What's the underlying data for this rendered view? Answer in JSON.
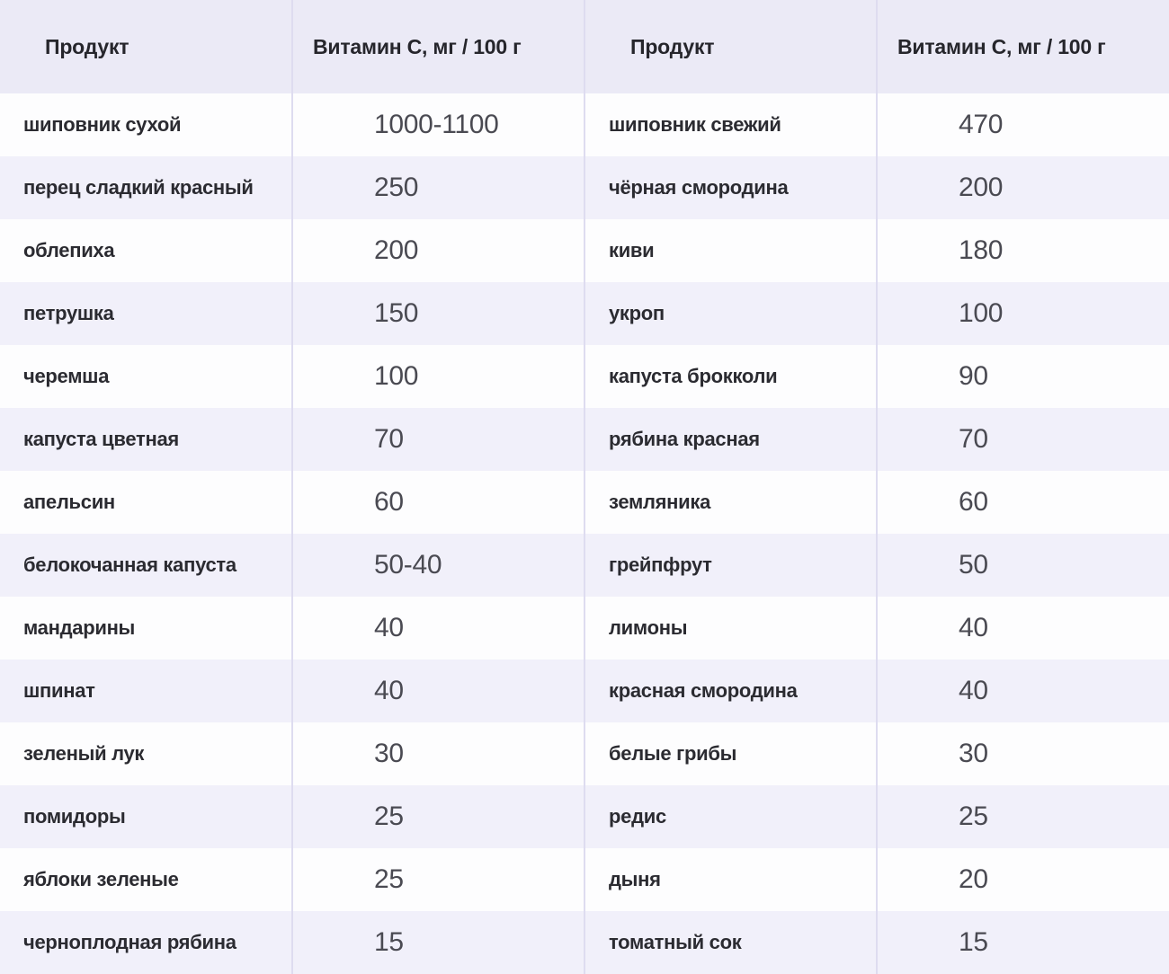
{
  "chart_data": {
    "type": "table",
    "columns": [
      "Продукт",
      "Витамин С, мг / 100 г",
      "Продукт",
      "Витамин С, мг / 100 г"
    ],
    "rows": [
      [
        "шиповник сухой",
        "1000-1100",
        "шиповник свежий",
        "470"
      ],
      [
        "перец сладкий красный",
        "250",
        "чёрная смородина",
        "200"
      ],
      [
        "облепиха",
        "200",
        "киви",
        "180"
      ],
      [
        "петрушка",
        "150",
        "укроп",
        "100"
      ],
      [
        "черемша",
        "100",
        "капуста брокколи",
        "90"
      ],
      [
        "капуста цветная",
        "70",
        "рябина красная",
        "70"
      ],
      [
        "апельсин",
        "60",
        "земляника",
        "60"
      ],
      [
        "белокочанная капуста",
        "50-40",
        "грейпфрут",
        "50"
      ],
      [
        "мандарины",
        "40",
        "лимоны",
        "40"
      ],
      [
        "шпинат",
        "40",
        "красная смородина",
        "40"
      ],
      [
        "зеленый лук",
        "30",
        "белые грибы",
        "30"
      ],
      [
        "помидоры",
        "25",
        "редис",
        "25"
      ],
      [
        "яблоки зеленые",
        "25",
        "дыня",
        "20"
      ],
      [
        "черноплодная рябина",
        "15",
        "томатный сок",
        "15"
      ]
    ],
    "layout": {
      "header_row": true,
      "zebra_striping": true,
      "value_unit": "мг / 100 г"
    }
  },
  "colors": {
    "header_bg": "#ebeaf6",
    "row_alt_bg": "#f1f0fa",
    "row_bg": "#fdfdfe",
    "border": "#dedcf0",
    "header_text": "#26262c",
    "product_text": "#2b2b31",
    "value_text": "#4a4a52"
  }
}
